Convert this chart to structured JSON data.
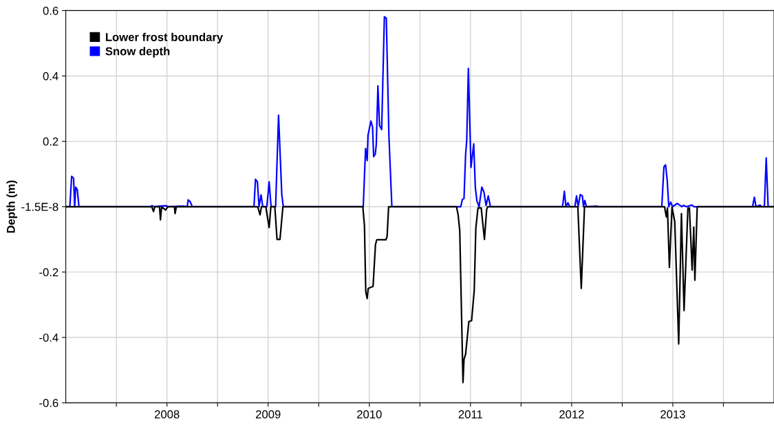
{
  "chart_data": {
    "type": "line",
    "ylabel": "Depth (m)",
    "xlim": [
      2007.0,
      2014.0
    ],
    "xticks": [
      {
        "value": 2007.5,
        "label": null
      },
      2008,
      {
        "value": 2008.5,
        "label": null
      },
      2009,
      {
        "value": 2009.5,
        "label": null
      },
      2010,
      {
        "value": 2010.5,
        "label": null
      },
      2011,
      {
        "value": 2011.5,
        "label": null
      },
      2012,
      {
        "value": 2012.5,
        "label": null
      },
      2013,
      {
        "value": 2013.5,
        "label": null
      }
    ],
    "ylim": [
      -0.6,
      0.6
    ],
    "yticks": [
      -0.6,
      -0.4,
      -0.2,
      {
        "value": -1.5e-08,
        "label": "-1.5E-8"
      },
      0.2,
      0.4,
      0.6
    ],
    "grid": true,
    "legend": "top left",
    "marker": "none",
    "line_style": "solid",
    "series": [
      {
        "name": "Lower frost boundary",
        "color": "#000000",
        "x": [
          2007.0,
          2007.85,
          2007.867,
          2007.88,
          2007.926,
          2007.936,
          2007.947,
          2007.987,
          2008.008,
          2008.074,
          2008.08,
          2008.093,
          2008.897,
          2008.92,
          2008.934,
          2008.977,
          2009.01,
          2009.027,
          2009.066,
          2009.088,
          2009.117,
          2009.146,
          2009.936,
          2009.952,
          2009.965,
          2009.979,
          2009.989,
          2010.037,
          2010.061,
          2010.074,
          2010.165,
          2010.176,
          2010.191,
          2010.862,
          2010.878,
          2010.894,
          2010.926,
          2010.936,
          2010.952,
          2010.984,
          2011.011,
          2011.037,
          2011.053,
          2011.074,
          2011.106,
          2011.138,
          2011.16,
          2011.17,
          2012.061,
          2012.095,
          2012.127,
          2012.918,
          2012.936,
          2012.947,
          2012.966,
          2012.992,
          2013.019,
          2013.058,
          2013.085,
          2013.111,
          2013.149,
          2013.164,
          2013.191,
          2013.207,
          2013.218,
          2013.241,
          2014.0
        ],
        "values": [
          0,
          0,
          -0.015,
          0,
          0,
          -0.04,
          0,
          -0.01,
          0,
          0,
          -0.021,
          0,
          0,
          -0.025,
          0,
          0,
          -0.064,
          0,
          0,
          -0.1,
          -0.1,
          0,
          0,
          -0.058,
          -0.26,
          -0.281,
          -0.25,
          -0.244,
          -0.116,
          -0.101,
          -0.101,
          -0.091,
          0,
          0,
          -0.025,
          -0.074,
          -0.538,
          -0.467,
          -0.451,
          -0.351,
          -0.349,
          -0.256,
          -0.066,
          -0.004,
          -0.004,
          -0.1,
          -0.008,
          0,
          0,
          -0.25,
          0,
          0,
          -0.031,
          -0.004,
          -0.186,
          -0.002,
          -0.045,
          -0.42,
          -0.021,
          -0.318,
          -0.004,
          -0.004,
          -0.194,
          -0.062,
          -0.225,
          0,
          0
        ]
      },
      {
        "name": "Snow depth",
        "color": "#0000ff",
        "x": [
          2007.0,
          2007.04,
          2007.058,
          2007.077,
          2007.088,
          2007.098,
          2007.114,
          2007.13,
          2007.84,
          2007.85,
          2007.875,
          2007.934,
          2007.99,
          2008.01,
          2008.16,
          2008.2,
          2008.21,
          2008.23,
          2008.25,
          2008.86,
          2008.875,
          2008.894,
          2008.91,
          2008.93,
          2008.947,
          2008.987,
          2009.01,
          2009.029,
          2009.074,
          2009.103,
          2009.135,
          2009.15,
          2009.94,
          2009.963,
          2009.979,
          2009.987,
          2010.016,
          2010.032,
          2010.043,
          2010.059,
          2010.069,
          2010.085,
          2010.101,
          2010.122,
          2010.149,
          2010.168,
          2010.194,
          2010.223,
          2010.904,
          2010.92,
          2010.936,
          2010.952,
          2010.963,
          2010.979,
          2011.005,
          2011.032,
          2011.048,
          2011.064,
          2011.085,
          2011.112,
          2011.133,
          2011.154,
          2011.176,
          2011.197,
          2011.91,
          2011.928,
          2011.944,
          2011.963,
          2011.981,
          2012.032,
          2012.048,
          2012.064,
          2012.085,
          2012.106,
          2012.117,
          2012.13,
          2012.146,
          2012.25,
          2012.26,
          2012.891,
          2012.912,
          2012.928,
          2012.944,
          2012.96,
          2012.979,
          2012.997,
          2013.045,
          2013.09,
          2013.103,
          2013.135,
          2013.188,
          2013.21,
          2013.788,
          2013.806,
          2013.822,
          2013.862,
          2013.878,
          2013.905,
          2013.923,
          2013.942,
          2014.0
        ],
        "values": [
          0,
          0,
          0.093,
          0.087,
          0,
          0.06,
          0.052,
          0,
          0,
          0.003,
          0,
          0.002,
          0.003,
          0,
          0.002,
          0,
          0.021,
          0.015,
          0,
          0,
          0.084,
          0.076,
          0,
          0.036,
          0,
          0,
          0.076,
          0,
          0,
          0.28,
          0.037,
          0,
          0,
          0.178,
          0.141,
          0.219,
          0.262,
          0.244,
          0.153,
          0.161,
          0.19,
          0.37,
          0.248,
          0.236,
          0.581,
          0.577,
          0.215,
          0,
          0,
          0.022,
          0.025,
          0.161,
          0.203,
          0.423,
          0.12,
          0.192,
          0.058,
          0.017,
          0,
          0.06,
          0.045,
          0.004,
          0.033,
          0,
          0,
          0.047,
          0,
          0.012,
          0,
          0,
          0.033,
          0,
          0.037,
          0.033,
          0,
          0.019,
          0,
          0.002,
          0,
          0,
          0.122,
          0.128,
          0.083,
          0,
          0.014,
          0,
          0.01,
          0,
          0.004,
          0,
          0.005,
          0,
          0,
          0.029,
          0,
          0.005,
          0,
          0,
          0.149,
          0,
          0
        ]
      }
    ]
  }
}
